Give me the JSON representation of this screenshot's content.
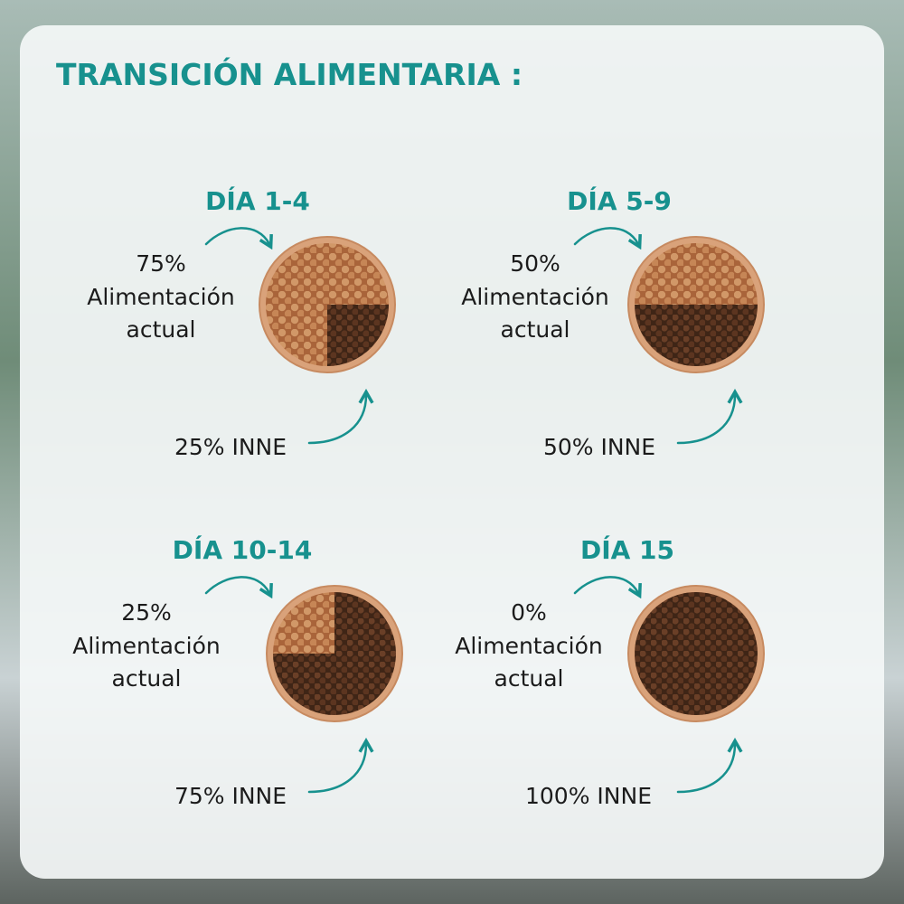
{
  "header": {
    "title": "TRANSICIÓN ALIMENTARIA :"
  },
  "panels": [
    {
      "day": "DÍA 1-4",
      "current_pct": "75%",
      "current_label": [
        "Alimentación",
        "actual"
      ],
      "inne": "25% INNE"
    },
    {
      "day": "DÍA  5-9",
      "current_pct": "50%",
      "current_label": [
        "Alimentación",
        "actual"
      ],
      "inne": "50% INNE"
    },
    {
      "day": "DÍA  10-14",
      "current_pct": "25%",
      "current_label": [
        "Alimentación",
        "actual"
      ],
      "inne": "75% INNE"
    },
    {
      "day": "DÍA  15",
      "current_pct": "0%",
      "current_label": [
        "Alimentación",
        "actual"
      ],
      "inne": "100% INNE"
    }
  ]
}
